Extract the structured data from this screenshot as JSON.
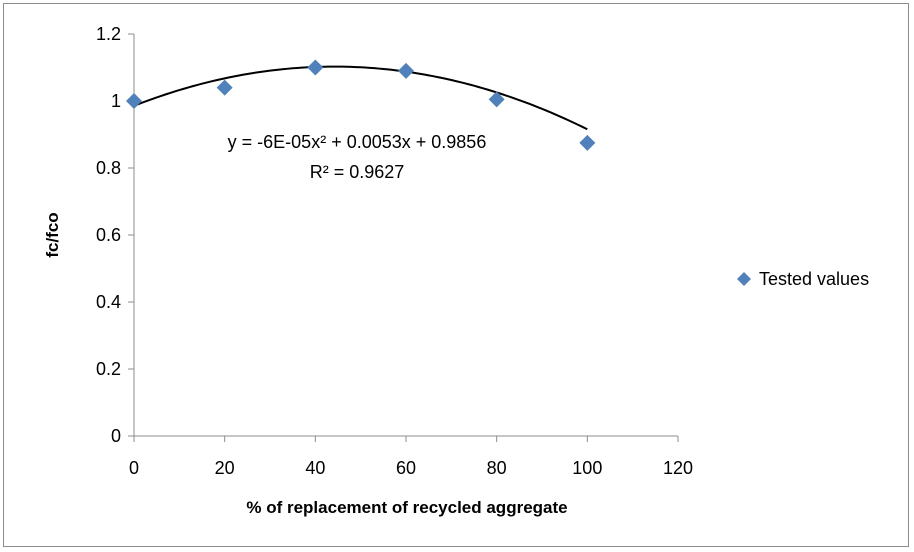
{
  "chart_data": {
    "type": "scatter",
    "title": "",
    "xlabel": "% of replacement of recycled aggregate",
    "ylabel": "fc/fco",
    "xlim": [
      0,
      120
    ],
    "ylim": [
      0,
      1.2
    ],
    "x_ticks": [
      "0",
      "20",
      "40",
      "60",
      "80",
      "100",
      "120"
    ],
    "y_ticks": [
      "0",
      "0.2",
      "0.4",
      "0.6",
      "0.8",
      "1",
      "1.2"
    ],
    "grid": false,
    "legend_position": "right",
    "series": [
      {
        "name": "Tested values",
        "marker": "diamond",
        "color": "#4f81bd",
        "x": [
          0,
          20,
          40,
          60,
          80,
          100
        ],
        "y": [
          1.0,
          1.04,
          1.1,
          1.09,
          1.005,
          0.875
        ]
      }
    ],
    "trendline": {
      "type": "polynomial",
      "order": 2,
      "coefficients": [
        -6e-05,
        0.0053,
        0.9856
      ],
      "x_range": [
        0,
        100
      ],
      "color": "#000000",
      "equation_label": "y = -6E-05x² + 0.0053x + 0.9856",
      "r2_label": "R² = 0.9627"
    }
  }
}
